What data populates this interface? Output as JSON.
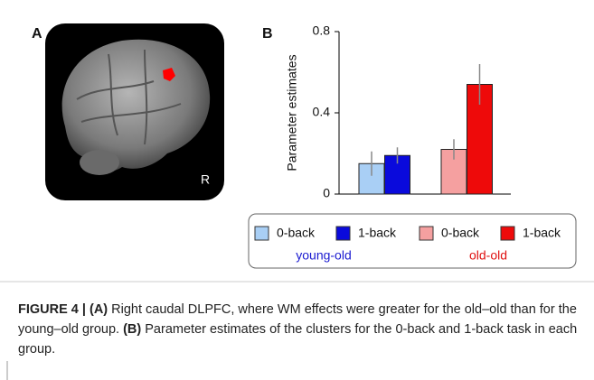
{
  "panel_labels": [
    "A",
    "B"
  ],
  "image_label": "R",
  "chart_data": {
    "type": "bar",
    "ylabel": "Parameter estimates",
    "ylim": [
      0,
      0.8
    ],
    "yticks": [
      0,
      0.4,
      0.8
    ],
    "groups": [
      {
        "name": "young-old",
        "color": "#1a1ad0",
        "series": [
          {
            "name": "0-back",
            "color": "#a9cff5",
            "value": 0.15,
            "error": 0.06
          },
          {
            "name": "1-back",
            "color": "#0a0adc",
            "value": 0.19,
            "error": 0.04
          }
        ]
      },
      {
        "name": "old-old",
        "color": "#e01010",
        "series": [
          {
            "name": "0-back",
            "color": "#f5a0a0",
            "value": 0.22,
            "error": 0.05
          },
          {
            "name": "1-back",
            "color": "#ee0a0a",
            "value": 0.54,
            "error": 0.1
          }
        ]
      }
    ]
  },
  "caption": [
    {
      "text": "FIGURE 4 | (A)",
      "bold": true
    },
    {
      "text": " Right caudal DLPFC, where WM effects were greater for the old–old than for the young–old group. ",
      "bold": false
    },
    {
      "text": "(B)",
      "bold": true
    },
    {
      "text": " Parameter estimates of the clusters for the 0-back and 1-back task in each group.",
      "bold": false
    }
  ]
}
